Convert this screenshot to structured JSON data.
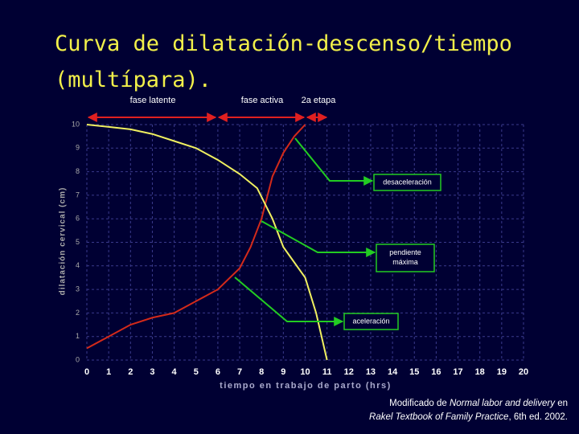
{
  "chart_data": {
    "type": "line",
    "title": "Curva de dilatación-descenso/tiempo (multípara).",
    "x_label": "tiempo en trabajo de parto (hrs)",
    "y_label": "dilatación cervical (cm)",
    "xlim": [
      0,
      20
    ],
    "ylim": [
      0,
      10
    ],
    "xticks": [
      0,
      1,
      2,
      3,
      4,
      5,
      6,
      7,
      8,
      9,
      10,
      11,
      12,
      13,
      14,
      15,
      16,
      17,
      18,
      19,
      20
    ],
    "yticks": [
      0,
      1,
      2,
      3,
      4,
      5,
      6,
      7,
      8,
      9,
      10
    ],
    "grid": true,
    "series": [
      {
        "color": "#d42a1a",
        "x": [
          0,
          1,
          2,
          3,
          4,
          5,
          6,
          7,
          7.5,
          8,
          8.5,
          9,
          9.5,
          10
        ],
        "values": [
          0.5,
          1.0,
          1.5,
          1.8,
          2.0,
          2.5,
          3.0,
          3.9,
          4.8,
          6.0,
          7.8,
          8.8,
          9.5,
          10
        ]
      },
      {
        "color": "#f0f060",
        "x": [
          0,
          1,
          2,
          3,
          4,
          5,
          6,
          7,
          7.8,
          8.5,
          9,
          10,
          10.5,
          11
        ],
        "values": [
          10,
          9.9,
          9.8,
          9.6,
          9.3,
          9.0,
          8.5,
          7.9,
          7.3,
          6.0,
          4.8,
          3.5,
          2.0,
          0
        ]
      }
    ],
    "phases": [
      "fase latente",
      "fase activa",
      "2a etapa"
    ],
    "callouts": [
      "desaceleración",
      "pendiente máxima",
      "aceleración"
    ]
  },
  "footnote": {
    "line1": [
      "Modificado de",
      "Normal labor and delivery",
      "en"
    ],
    "line2": [
      "Rakel Textbook of Family Practice",
      ", 6th ed. 2002."
    ]
  }
}
